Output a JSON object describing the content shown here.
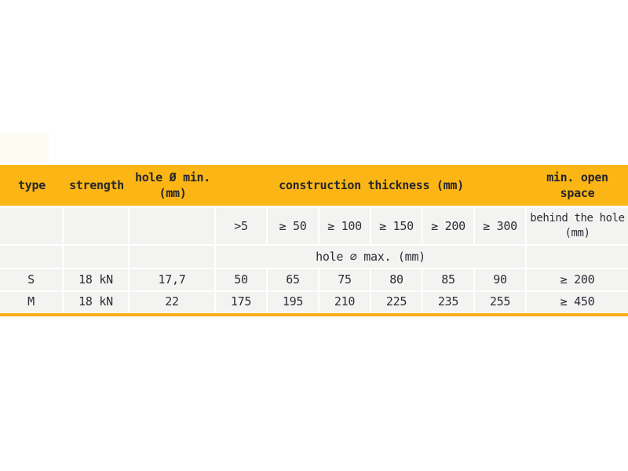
{
  "colors": {
    "header_bg": "#fbb615",
    "cell_bg": "#f3f3f1",
    "text": "#2b2d36",
    "header_text": "#26262b",
    "bottom_line": "#fbad19",
    "page_bg": "#ffffff"
  },
  "table": {
    "header": {
      "type": "type",
      "strength": "strength",
      "hole_min_line1": "hole Ø min.",
      "hole_min_line2": "(mm)",
      "construction": "construction thickness (mm)",
      "open_space_line1": "min. open",
      "open_space_line2": "space"
    },
    "subheader": {
      "cols": [
        ">5",
        "≥ 50",
        "≥ 100",
        "≥ 150",
        "≥ 200",
        "≥ 300"
      ],
      "behind_line1": "behind the hole",
      "behind_line2": "(mm)"
    },
    "hole_max_label": "hole ∅ max. (mm)",
    "rows": [
      {
        "type": "S",
        "strength": "18 kN",
        "hole_min": "17,7",
        "thickness": [
          "50",
          "65",
          "75",
          "80",
          "85",
          "90"
        ],
        "open_space": "≥ 200"
      },
      {
        "type": "M",
        "strength": "18 kN",
        "hole_min": "22",
        "thickness": [
          "175",
          "195",
          "210",
          "225",
          "235",
          "255"
        ],
        "open_space": "≥ 450"
      }
    ]
  },
  "chart_data": {
    "type": "table",
    "title": "",
    "columns": [
      "type",
      "strength",
      "hole Ø min. (mm)",
      ">5",
      "≥ 50",
      "≥ 100",
      "≥ 150",
      "≥ 200",
      "≥ 300",
      "min. open space behind the hole (mm)"
    ],
    "column_group": {
      "label": "construction thickness (mm)",
      "spans": [
        ">5",
        "≥ 50",
        "≥ 100",
        "≥ 150",
        "≥ 200",
        "≥ 300"
      ],
      "sub_label": "hole ∅ max. (mm)"
    },
    "rows": [
      [
        "S",
        "18 kN",
        "17,7",
        "50",
        "65",
        "75",
        "80",
        "85",
        "90",
        "≥ 200"
      ],
      [
        "M",
        "18 kN",
        "22",
        "175",
        "195",
        "210",
        "225",
        "235",
        "255",
        "≥ 450"
      ]
    ]
  }
}
